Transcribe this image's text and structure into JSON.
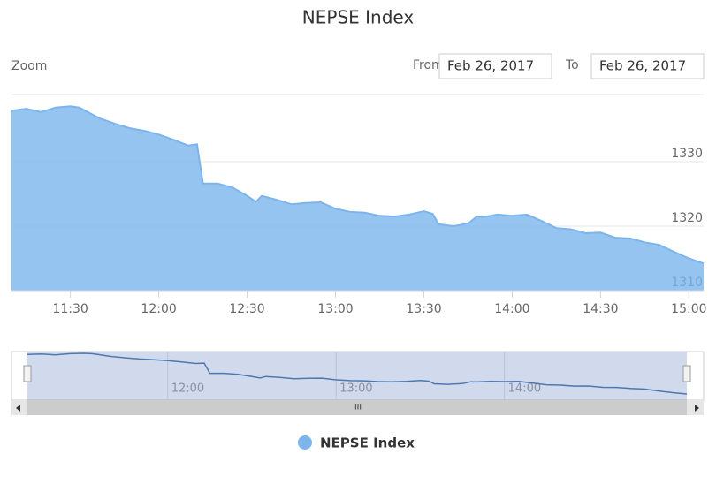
{
  "chart_data": {
    "type": "area",
    "title": "NEPSE Index",
    "range_selector": {
      "label": "Zoom",
      "from_label": "From",
      "from": "Feb 26, 2017",
      "to_label": "To",
      "to": "Feb 26, 2017"
    },
    "x": [
      "11:10",
      "11:15",
      "11:20",
      "11:25",
      "11:30",
      "11:33",
      "11:35",
      "11:40",
      "11:45",
      "11:50",
      "11:55",
      "12:00",
      "12:05",
      "12:10",
      "12:13",
      "12:14",
      "12:15",
      "12:20",
      "12:25",
      "12:30",
      "12:33",
      "12:35",
      "12:40",
      "12:45",
      "12:50",
      "12:55",
      "13:00",
      "13:05",
      "13:10",
      "13:15",
      "13:20",
      "13:25",
      "13:30",
      "13:33",
      "13:35",
      "13:40",
      "13:45",
      "13:48",
      "13:50",
      "13:55",
      "14:00",
      "14:05",
      "14:10",
      "14:15",
      "14:20",
      "14:25",
      "14:30",
      "14:35",
      "14:40",
      "14:45",
      "14:50",
      "14:55",
      "15:00",
      "15:05"
    ],
    "series": [
      {
        "name": "NEPSE Index",
        "color": "#7cb5ec",
        "values": [
          1337.9,
          1338.2,
          1337.7,
          1338.4,
          1338.6,
          1338.4,
          1337.9,
          1336.7,
          1335.9,
          1335.2,
          1334.8,
          1334.2,
          1333.4,
          1332.5,
          1332.7,
          1329.7,
          1326.6,
          1326.6,
          1326.0,
          1324.7,
          1323.8,
          1324.7,
          1324.1,
          1323.4,
          1323.6,
          1323.7,
          1322.7,
          1322.2,
          1322.1,
          1321.6,
          1321.5,
          1321.8,
          1322.3,
          1321.9,
          1320.3,
          1320.0,
          1320.4,
          1321.5,
          1321.4,
          1321.8,
          1321.6,
          1321.8,
          1320.8,
          1319.7,
          1319.5,
          1318.9,
          1319.0,
          1318.2,
          1318.1,
          1317.5,
          1317.1,
          1316.0,
          1315.0,
          1314.2
        ]
      }
    ],
    "xlim": [
      "11:10",
      "15:05"
    ],
    "xticks": [
      "11:30",
      "12:00",
      "12:30",
      "13:00",
      "13:30",
      "14:00",
      "14:30",
      "15:00"
    ],
    "ylim": [
      1310,
      1340
    ],
    "yticks": [
      1310,
      1320,
      1330
    ],
    "grid": true,
    "navigator_xticks": [
      "12:00",
      "13:00",
      "14:00"
    ],
    "navigator_color": "#4572a7"
  }
}
